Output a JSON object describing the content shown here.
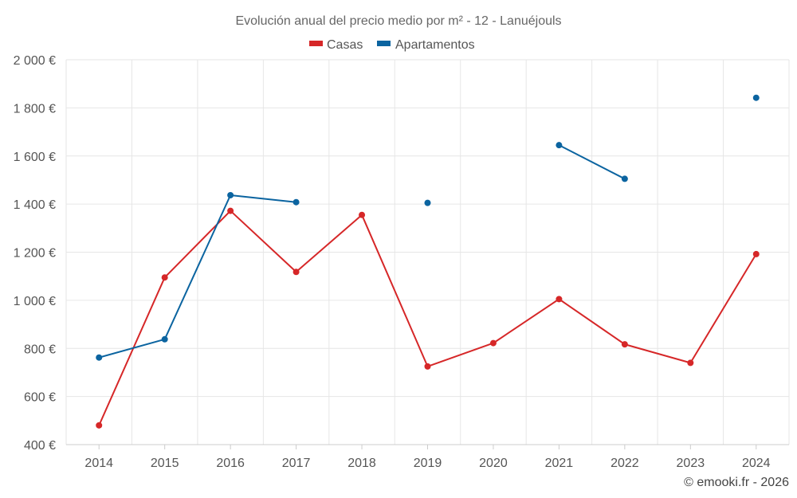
{
  "chart_data": {
    "type": "line",
    "title": "Evolución anual del precio medio por m² - 12 - Lanuéjouls",
    "x": [
      "2014",
      "2015",
      "2016",
      "2017",
      "2018",
      "2019",
      "2020",
      "2021",
      "2022",
      "2023",
      "2024"
    ],
    "ylim": [
      400,
      2000
    ],
    "yticks": [
      400,
      600,
      800,
      1000,
      1200,
      1400,
      1600,
      1800,
      2000
    ],
    "ytick_labels": [
      "400 €",
      "600 €",
      "800 €",
      "1 000 €",
      "1 200 €",
      "1 400 €",
      "1 600 €",
      "1 800 €",
      "2 000 €"
    ],
    "grid": true,
    "legend_position": "top-center",
    "series": [
      {
        "name": "Casas",
        "color": "#d62728",
        "values": [
          480,
          1095,
          1372,
          1118,
          1355,
          725,
          822,
          1005,
          817,
          740,
          1192
        ]
      },
      {
        "name": "Apartamentos",
        "color": "#0b64a0",
        "values": [
          762,
          838,
          1437,
          1408,
          null,
          1405,
          null,
          1645,
          1505,
          null,
          1842
        ]
      }
    ],
    "credit": "© emooki.fr - 2026"
  }
}
